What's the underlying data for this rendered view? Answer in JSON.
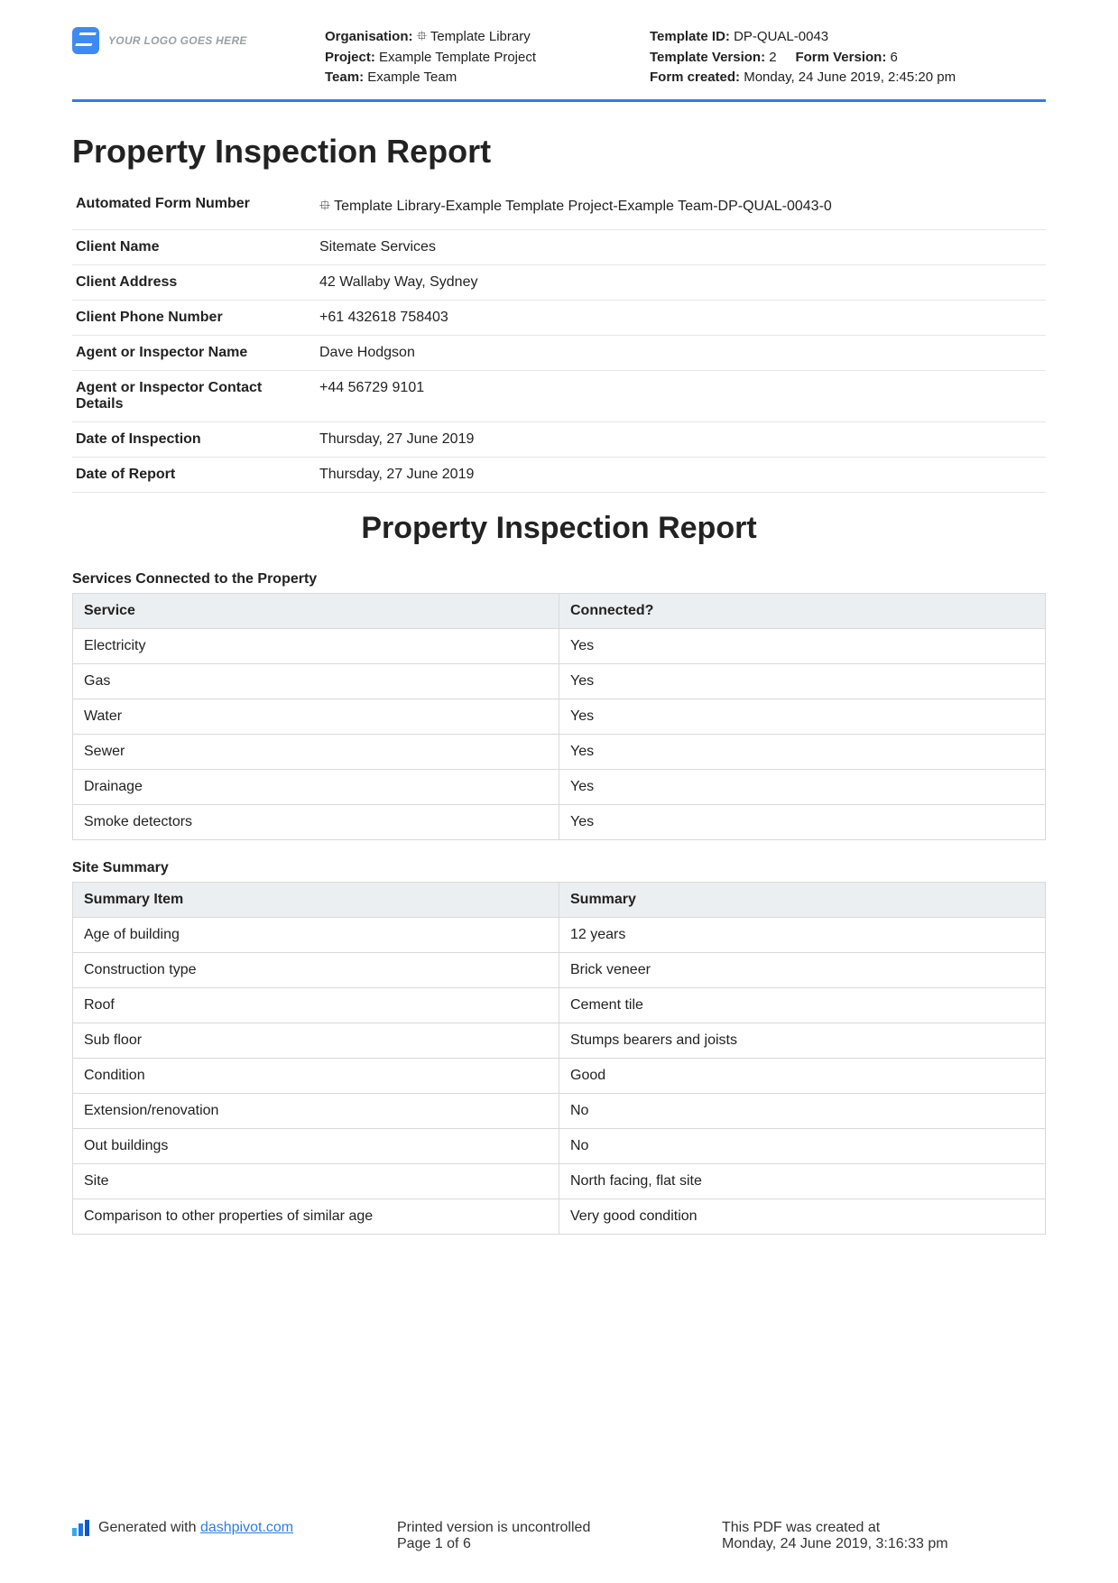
{
  "header": {
    "logo_text": "YOUR LOGO GOES HERE",
    "left": {
      "org_label": "Organisation:",
      "org": "⯐ Template Library",
      "project_label": "Project:",
      "project": "Example Template Project",
      "team_label": "Team:",
      "team": "Example Team"
    },
    "right": {
      "tid_label": "Template ID:",
      "tid": "DP-QUAL-0043",
      "tver_label": "Template Version:",
      "tver": "2",
      "fver_label": "Form Version:",
      "fver": "6",
      "created_label": "Form created:",
      "created": "Monday, 24 June 2019, 2:45:20 pm"
    }
  },
  "title": "Property Inspection Report",
  "details": [
    {
      "k": "Automated Form Number",
      "v": "⯐ Template Library-Example Template Project-Example Team-DP-QUAL-0043-0"
    },
    {
      "k": "Client Name",
      "v": "Sitemate Services"
    },
    {
      "k": "Client Address",
      "v": "42 Wallaby Way, Sydney"
    },
    {
      "k": "Client Phone Number",
      "v": "+61 432618 758403"
    },
    {
      "k": "Agent or Inspector Name",
      "v": "Dave Hodgson"
    },
    {
      "k": "Agent or Inspector Contact Details",
      "v": "+44 56729 9101"
    },
    {
      "k": "Date of Inspection",
      "v": "Thursday, 27 June 2019"
    },
    {
      "k": "Date of Report",
      "v": "Thursday, 27 June 2019"
    }
  ],
  "mid_title": "Property Inspection Report",
  "services": {
    "title": "Services Connected to the Property",
    "headers": [
      "Service",
      "Connected?"
    ],
    "rows": [
      [
        "Electricity",
        "Yes"
      ],
      [
        "Gas",
        "Yes"
      ],
      [
        "Water",
        "Yes"
      ],
      [
        "Sewer",
        "Yes"
      ],
      [
        "Drainage",
        "Yes"
      ],
      [
        "Smoke detectors",
        "Yes"
      ]
    ]
  },
  "summary": {
    "title": "Site Summary",
    "headers": [
      "Summary Item",
      "Summary"
    ],
    "rows": [
      [
        "Age of building",
        "12 years"
      ],
      [
        "Construction type",
        "Brick veneer"
      ],
      [
        "Roof",
        "Cement tile"
      ],
      [
        "Sub floor",
        "Stumps bearers and joists"
      ],
      [
        "Condition",
        "Good"
      ],
      [
        "Extension/renovation",
        "No"
      ],
      [
        "Out buildings",
        "No"
      ],
      [
        "Site",
        "North facing, flat site"
      ],
      [
        "Comparison to other properties of similar age",
        "Very good condition"
      ]
    ]
  },
  "footer": {
    "gen_prefix": "Generated with ",
    "gen_link": "dashpivot.com",
    "uncontrolled": "Printed version is uncontrolled",
    "page": "Page 1 of 6",
    "created_label": "This PDF was created at",
    "created": "Monday, 24 June 2019, 3:16:33 pm"
  }
}
